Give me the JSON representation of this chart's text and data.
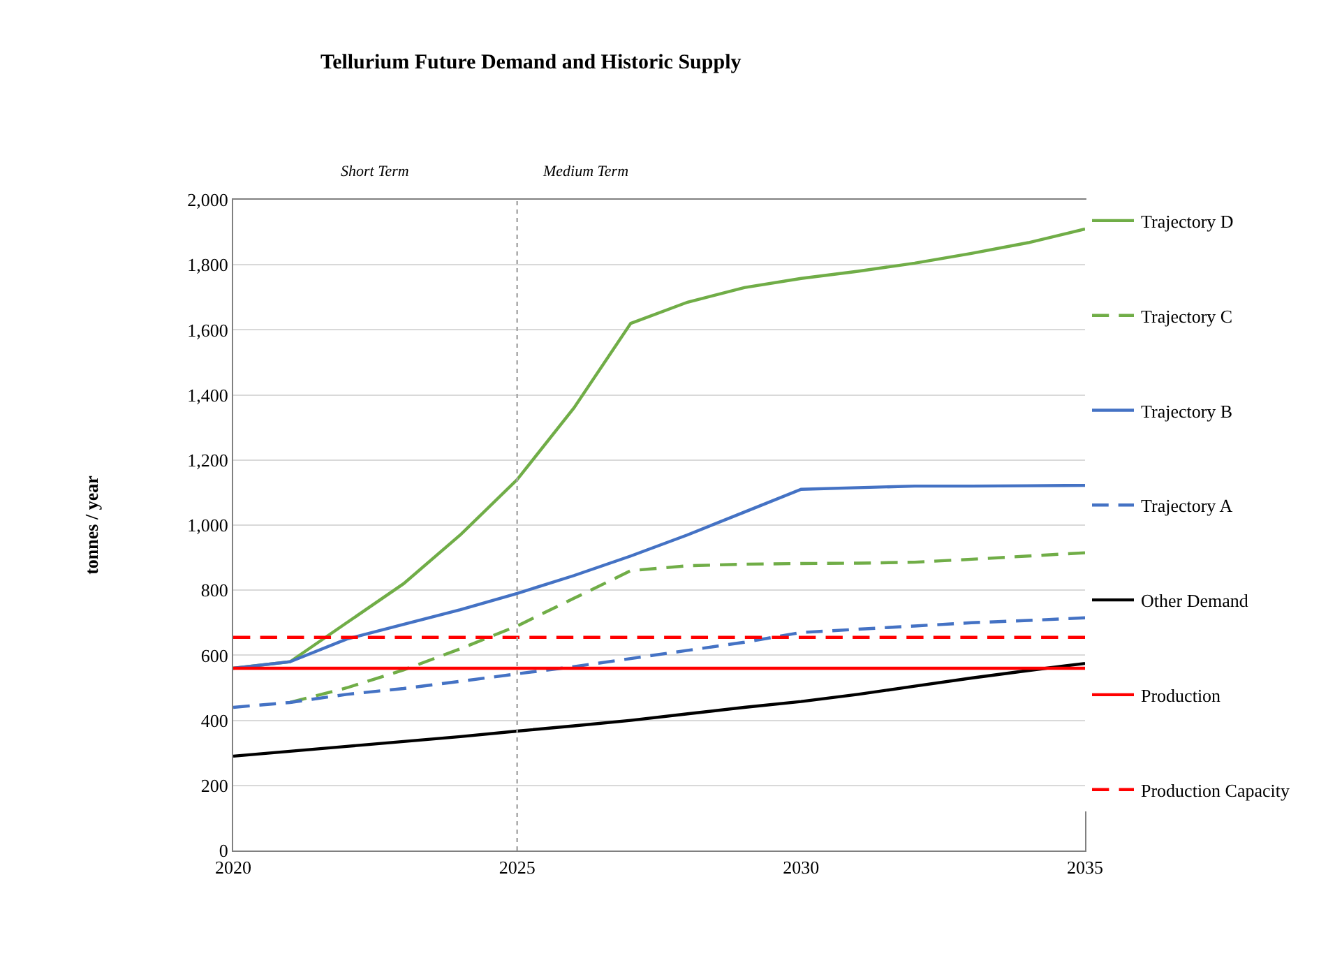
{
  "chart_data": {
    "type": "line",
    "title": "Tellurium Future Demand and Historic Supply",
    "ylabel": "tonnes / year",
    "x": [
      2020,
      2021,
      2022,
      2023,
      2024,
      2025,
      2026,
      2027,
      2028,
      2029,
      2030,
      2031,
      2032,
      2033,
      2034,
      2035
    ],
    "series": [
      {
        "name": "Trajectory D",
        "color": "#70ad47",
        "line_style": "solid",
        "values": [
          560,
          580,
          700,
          820,
          970,
          1140,
          1360,
          1620,
          1685,
          1730,
          1758,
          1780,
          1805,
          1835,
          1868,
          1910
        ]
      },
      {
        "name": "Trajectory C",
        "color": "#70ad47",
        "line_style": "dashed",
        "values": [
          null,
          455,
          500,
          555,
          620,
          690,
          775,
          860,
          875,
          880,
          882,
          883,
          886,
          895,
          905,
          915
        ]
      },
      {
        "name": "Trajectory B",
        "color": "#4472c4",
        "line_style": "solid",
        "values": [
          560,
          580,
          650,
          695,
          740,
          790,
          845,
          905,
          970,
          1040,
          1110,
          1115,
          1120,
          1120,
          1121,
          1122
        ]
      },
      {
        "name": "Trajectory A",
        "color": "#4472c4",
        "line_style": "dashed",
        "values": [
          440,
          455,
          480,
          498,
          520,
          543,
          565,
          590,
          615,
          640,
          670,
          680,
          690,
          700,
          707,
          715
        ]
      },
      {
        "name": "Other Demand",
        "color": "#000000",
        "line_style": "solid",
        "values": [
          290,
          305,
          320,
          335,
          350,
          367,
          383,
          400,
          420,
          440,
          458,
          480,
          505,
          530,
          553,
          575
        ]
      },
      {
        "name": "Production",
        "color": "#ff0000",
        "line_style": "solid",
        "values": [
          560,
          560,
          560,
          560,
          560,
          560,
          560,
          560,
          560,
          560,
          560,
          560,
          560,
          560,
          560,
          560
        ]
      },
      {
        "name": "Production Capacity",
        "color": "#ff0000",
        "line_style": "dashed",
        "values": [
          655,
          655,
          655,
          655,
          655,
          655,
          655,
          655,
          655,
          655,
          655,
          655,
          655,
          655,
          655,
          655
        ]
      }
    ],
    "ref_lines": [
      {
        "axis": "x",
        "value": 2025,
        "color": "#a6a6a6",
        "line_style": "dotted"
      }
    ],
    "annotations": [
      "Short Term",
      "Medium Term"
    ],
    "xlim": [
      2020,
      2035
    ],
    "xticks": [
      2020,
      2025,
      2030,
      2035
    ],
    "ylim": [
      0,
      2000
    ],
    "yticks": [
      {
        "value": 0,
        "label": "0"
      },
      {
        "value": 200,
        "label": "200"
      },
      {
        "value": 400,
        "label": "400"
      },
      {
        "value": 600,
        "label": "600"
      },
      {
        "value": 800,
        "label": "800"
      },
      {
        "value": 1000,
        "label": "1,000"
      },
      {
        "value": 1200,
        "label": "1,200"
      },
      {
        "value": 1400,
        "label": "1,400"
      },
      {
        "value": 1600,
        "label": "1,600"
      },
      {
        "value": 1800,
        "label": "1,800"
      },
      {
        "value": 2000,
        "label": "2,000"
      }
    ],
    "grid": "y",
    "legend": "right",
    "marker": "none"
  }
}
